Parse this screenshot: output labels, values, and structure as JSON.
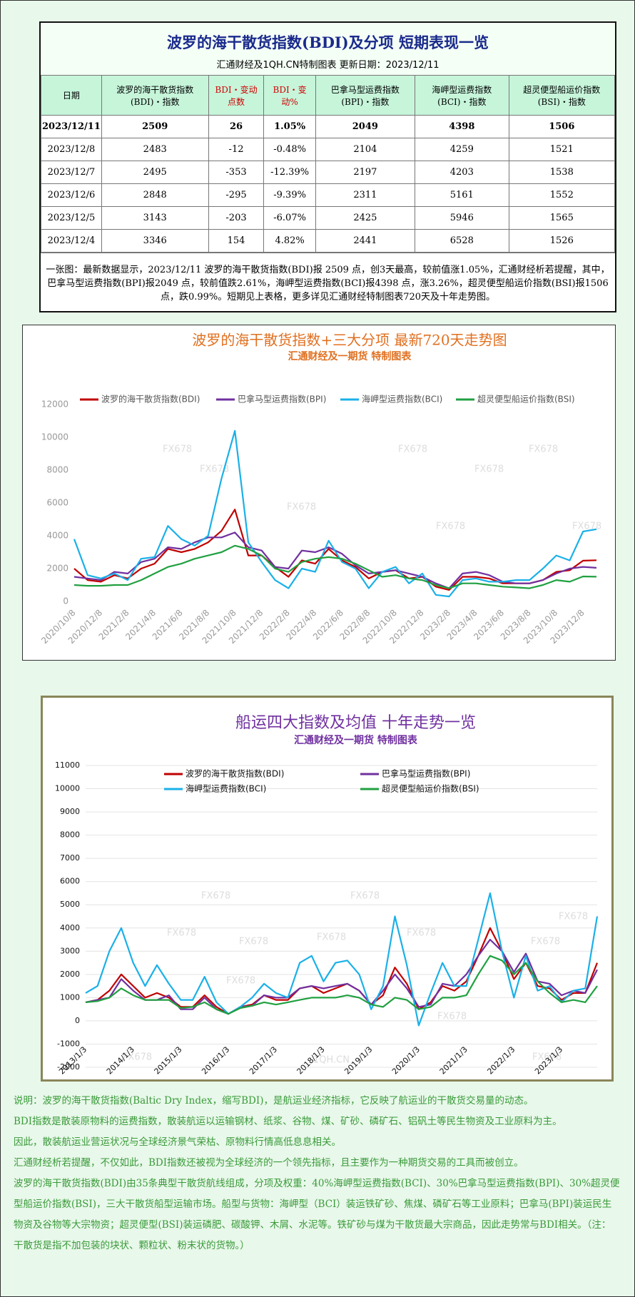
{
  "table": {
    "title": "波罗的海干散货指数(BDI)及分项  短期表现一览",
    "subtitle": "汇通财经及1QH.CN特制图表     更新日期：2023/12/11",
    "columns": [
      "日期",
      "波罗的海干散货指数(BDI)・指数",
      "BDI・变动点数",
      "BDI・变动%",
      "巴拿马型运费指数(BPI)・指数",
      "海岬型运费指数(BCI)・指数",
      "超灵便型船运价指数(BSI)・指数"
    ],
    "rows": [
      [
        "2023/12/11",
        "2509",
        "26",
        "1.05%",
        "2049",
        "4398",
        "1506"
      ],
      [
        "2023/12/8",
        "2483",
        "-12",
        "-0.48%",
        "2104",
        "4259",
        "1521"
      ],
      [
        "2023/12/7",
        "2495",
        "-353",
        "-12.39%",
        "2197",
        "4203",
        "1538"
      ],
      [
        "2023/12/6",
        "2848",
        "-295",
        "-9.39%",
        "2311",
        "5161",
        "1552"
      ],
      [
        "2023/12/5",
        "3143",
        "-203",
        "-6.07%",
        "2425",
        "5946",
        "1565"
      ],
      [
        "2023/12/4",
        "3346",
        "154",
        "4.82%",
        "2441",
        "6528",
        "1526"
      ]
    ],
    "note": "一张图：最新数据显示，2023/12/11 波罗的海干散货指数(BDI)报 2509 点，创3天最高，较前值涨1.05%，汇通财经析若提醒，其中，巴拿马型运费指数(BPI)报2049 点，较前值跌2.61%，海岬型运费指数(BCI)报4398 点，涨3.26%，超灵便型船运价指数(BSI)报1506 点，跌0.99%。短期见上表格，更多详见汇通财经特制图表720天及十年走势图。"
  },
  "chart_data": [
    {
      "type": "line",
      "title": "波罗的海干散货指数+三大分项  最新720天走势图",
      "subtitle": "汇通财经及一期货  特制图表",
      "watermark": "FX678",
      "grid": false,
      "categories": [
        "2020/10/8",
        null,
        "2020/12/8",
        null,
        "2021/2/8",
        null,
        "2021/4/8",
        null,
        "2021/6/8",
        null,
        "2021/8/8",
        null,
        "2021/10/8",
        null,
        "2021/12/8",
        null,
        "2022/2/8",
        null,
        "2022/4/8",
        null,
        "2022/6/8",
        null,
        "2022/8/8",
        null,
        "2022/10/8",
        null,
        "2022/12/8",
        null,
        "2023/2/8",
        null,
        "2023/4/8",
        null,
        "2023/6/8",
        null,
        "2023/8/8",
        null,
        "2023/10/8",
        null,
        "2023/12/8",
        null
      ],
      "ylim": [
        0,
        12000
      ],
      "yticks": [
        0,
        2000,
        4000,
        6000,
        8000,
        10000,
        12000
      ],
      "series": [
        {
          "name": "波罗的海干散货指数(BDI)",
          "color": "#c00000",
          "values": [
            2000,
            1300,
            1200,
            1600,
            1400,
            2000,
            2300,
            3200,
            3000,
            3200,
            3600,
            4300,
            5600,
            2800,
            2800,
            2100,
            1500,
            2500,
            2300,
            3200,
            2500,
            2100,
            1400,
            1800,
            1900,
            1400,
            1500,
            900,
            700,
            1500,
            1500,
            1400,
            1100,
            1100,
            1100,
            1300,
            1800,
            1900,
            2483,
            2509
          ]
        },
        {
          "name": "巴拿马型运费指数(BPI)",
          "color": "#7030a0",
          "values": [
            1500,
            1400,
            1300,
            1800,
            1700,
            2400,
            2600,
            3300,
            3200,
            3600,
            3900,
            3900,
            4200,
            3300,
            3100,
            2100,
            2000,
            3100,
            3000,
            3300,
            2900,
            2200,
            1700,
            1800,
            1900,
            1700,
            1500,
            1100,
            800,
            1700,
            1800,
            1600,
            1200,
            1100,
            1100,
            1300,
            1700,
            2000,
            2104,
            2049
          ]
        },
        {
          "name": "海岬型运费指数(BCI)",
          "color": "#1ab0e8",
          "values": [
            3800,
            1600,
            1400,
            1700,
            1300,
            2600,
            2700,
            4600,
            3800,
            3400,
            4000,
            7500,
            10400,
            3600,
            2400,
            1300,
            800,
            2000,
            1800,
            3700,
            2400,
            2000,
            800,
            1800,
            2100,
            1100,
            1700,
            400,
            300,
            1300,
            1400,
            1200,
            1200,
            1300,
            1300,
            2000,
            2800,
            2500,
            4259,
            4398
          ]
        },
        {
          "name": "超灵便型船运价指数(BSI)",
          "color": "#20a040",
          "values": [
            1000,
            950,
            950,
            1000,
            1000,
            1300,
            1700,
            2100,
            2300,
            2600,
            2800,
            3000,
            3400,
            3200,
            2800,
            2000,
            1800,
            2400,
            2600,
            2700,
            2600,
            2300,
            1900,
            1500,
            1600,
            1400,
            1300,
            1000,
            800,
            1100,
            1100,
            1000,
            900,
            850,
            800,
            1000,
            1300,
            1200,
            1521,
            1506
          ]
        }
      ]
    },
    {
      "type": "line",
      "title": "船运四大指数及均值 十年走势一览",
      "subtitle": "汇通财经及一期货 特制图表",
      "watermark": "FX678",
      "watermark2": "1QH.CN",
      "grid": true,
      "categories": [
        "2013/1/3",
        null,
        null,
        null,
        "2014/1/3",
        null,
        null,
        null,
        "2015/1/3",
        null,
        null,
        null,
        "2016/1/3",
        null,
        null,
        null,
        "2017/1/3",
        null,
        null,
        null,
        "2018/1/3",
        null,
        null,
        null,
        "2019/1/3",
        null,
        null,
        null,
        "2020/1/3",
        null,
        null,
        null,
        "2021/1/3",
        null,
        null,
        null,
        "2022/1/3",
        null,
        null,
        null,
        "2023/1/3",
        null,
        null,
        null
      ],
      "ylim": [
        -2000,
        11000
      ],
      "yticks": [
        -2000,
        -1000,
        0,
        1000,
        2000,
        3000,
        4000,
        5000,
        6000,
        7000,
        8000,
        9000,
        10000,
        11000
      ],
      "series": [
        {
          "name": "波罗的海干散货指数(BDI)",
          "color": "#c00000",
          "values": [
            800,
            900,
            1300,
            2000,
            1500,
            1000,
            1200,
            1000,
            600,
            600,
            1100,
            600,
            300,
            600,
            700,
            1100,
            900,
            900,
            1400,
            1500,
            1200,
            1400,
            1600,
            1300,
            700,
            1100,
            2300,
            1600,
            500,
            800,
            1500,
            1300,
            1700,
            2800,
            4000,
            3000,
            1800,
            2500,
            1500,
            1400,
            900,
            1200,
            1200,
            2500
          ]
        },
        {
          "name": "巴拿马型运费指数(BPI)",
          "color": "#7030a0",
          "values": [
            800,
            900,
            1000,
            1800,
            1300,
            900,
            900,
            1100,
            500,
            500,
            1000,
            500,
            300,
            600,
            650,
            1100,
            1000,
            1000,
            1400,
            1500,
            1400,
            1500,
            1600,
            1300,
            700,
            1300,
            2000,
            1400,
            600,
            700,
            1600,
            1500,
            2000,
            2800,
            3500,
            3000,
            2100,
            2900,
            1700,
            1600,
            1100,
            1300,
            1200,
            2200
          ]
        },
        {
          "name": "海岬型运费指数(BCI)",
          "color": "#1ab0e8",
          "values": [
            1200,
            1500,
            3000,
            4000,
            2500,
            1500,
            2400,
            1600,
            900,
            900,
            1900,
            800,
            300,
            600,
            1000,
            1600,
            1200,
            1000,
            2500,
            2800,
            1700,
            2500,
            2600,
            2000,
            500,
            1500,
            4500,
            2400,
            -200,
            1200,
            2500,
            1500,
            1500,
            3500,
            5500,
            3000,
            1000,
            2800,
            1300,
            1500,
            800,
            1300,
            1400,
            4500
          ]
        },
        {
          "name": "超灵便型船运价指数(BSI)",
          "color": "#20a040",
          "values": [
            800,
            850,
            1000,
            1400,
            1100,
            900,
            900,
            900,
            550,
            600,
            800,
            500,
            300,
            550,
            650,
            800,
            700,
            800,
            900,
            1000,
            1000,
            1000,
            1100,
            1000,
            700,
            600,
            1000,
            900,
            500,
            600,
            1000,
            1000,
            1100,
            2000,
            2800,
            2600,
            2000,
            2500,
            1700,
            1200,
            800,
            900,
            800,
            1500
          ]
        }
      ]
    }
  ],
  "explanation": [
    "说明：波罗的海干散货指数(Baltic Dry Index，缩写BDI)，是航运业经济指标，它反映了航运业的干散货交易量的动态。",
    "BDI指数是散装原物料的运费指数，散装航运以运输钢材、纸浆、谷物、煤、矿砂、磷矿石、铝矾土等民生物资及工业原料为主。",
    "因此，散装航运业营运状况与全球经济景气荣枯、原物料行情高低息息相关。",
    "汇通财经析若提醒，不仅如此，BDI指数还被视为全球经济的一个领先指标，且主要作为一种期货交易的工具而被创立。",
    "波罗的海干散货指数(BDI)由35条典型干散货航线组成，分项及权重：40%海岬型运费指数(BCI)、30%巴拿马型运费指数(BPI)、30%超灵便型船运价指数(BSI)，三大干散货船型运输市场。船型与货物：海岬型（BCI）装运铁矿砂、焦煤、磷矿石等工业原料；巴拿马(BPI)装运民生物资及谷物等大宗物资；超灵便型(BSI)装运磷肥、碳酸钾、木屑、水泥等。铁矿砂与煤为干散货最大宗商品，因此走势常与BDI相关。（注：干散货是指不加包装的块状、颗粒状、粉末状的货物。）"
  ]
}
